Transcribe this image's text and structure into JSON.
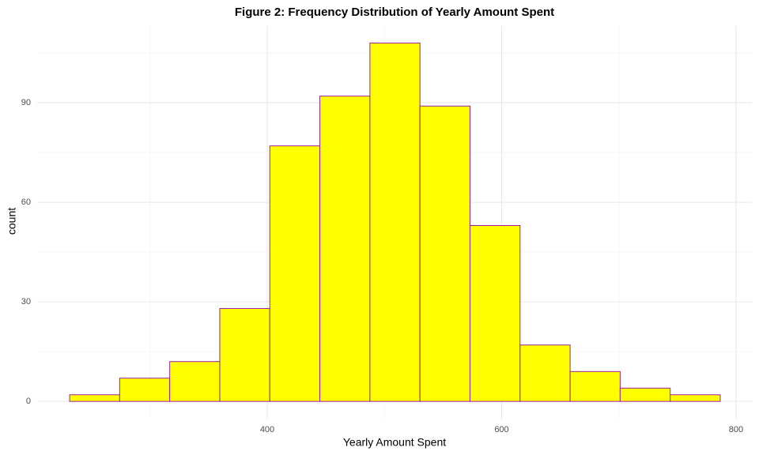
{
  "chart_data": {
    "type": "histogram",
    "title": "Figure 2: Frequency Distribution of Yearly Amount Spent",
    "x_label": "Yearly Amount Spent",
    "y_label": "count",
    "bins": [
      231.4,
      274.1,
      316.8,
      359.5,
      402.2,
      444.9,
      487.6,
      530.3,
      573.0,
      615.7,
      658.4,
      701.1,
      743.8,
      786.5
    ],
    "values": [
      2,
      7,
      12,
      28,
      77,
      92,
      108,
      89,
      53,
      17,
      9,
      4,
      2
    ],
    "color": "#ffff00",
    "edge_color": "#a020a0",
    "xlim": [
      203.7,
      813.5
    ],
    "ylim": [
      -5.2,
      113.1
    ],
    "xticks": [
      400,
      600,
      800
    ],
    "yticks": [
      0,
      30,
      60,
      90
    ],
    "minor_xticks": [
      300,
      500,
      700
    ],
    "minor_yticks": [
      15,
      45,
      75,
      105
    ],
    "grid": true
  }
}
